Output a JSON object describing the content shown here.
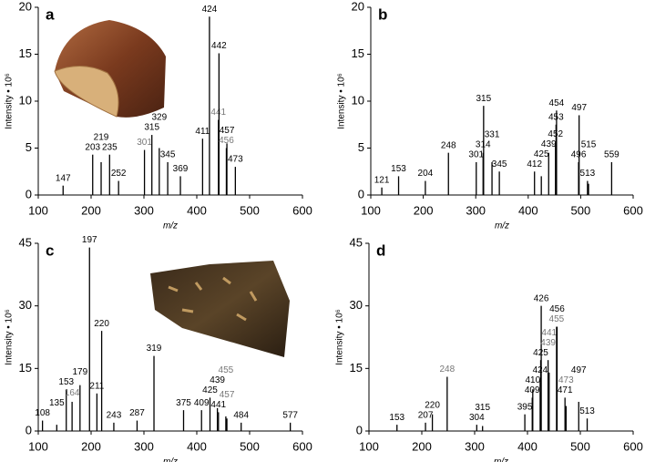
{
  "chart_data": [
    {
      "type": "bar",
      "panel": "a",
      "xlabel": "m/z",
      "ylabel": "Intensity • 10⁶",
      "xlim": [
        100,
        600
      ],
      "ylim": [
        0,
        20
      ],
      "xticks": [
        100,
        200,
        300,
        400,
        500,
        600
      ],
      "yticks": [
        0,
        5,
        10,
        15,
        20
      ],
      "color": "#000000",
      "x": [
        147,
        203,
        219,
        235,
        252,
        301,
        315,
        329,
        345,
        369,
        411,
        424,
        441,
        442,
        456,
        457,
        473
      ],
      "values": [
        1,
        4.3,
        3.5,
        4.3,
        1.5,
        4.8,
        6.4,
        5,
        3.5,
        2,
        6,
        19,
        8,
        15.1,
        5,
        5.5,
        3
      ],
      "label_colors": [
        "#000",
        "#000",
        "#000",
        "#000",
        "#000",
        "#777",
        "#000",
        "#000",
        "#000",
        "#000",
        "#000",
        "#000",
        "#777",
        "#000",
        "#777",
        "#000",
        "#000"
      ]
    },
    {
      "type": "bar",
      "panel": "b",
      "xlabel": "m/z",
      "ylabel": "Intensity • 10⁶",
      "xlim": [
        100,
        600
      ],
      "ylim": [
        0,
        20
      ],
      "xticks": [
        100,
        200,
        300,
        400,
        500,
        600
      ],
      "yticks": [
        0,
        5,
        10,
        15,
        20
      ],
      "color": "#000000",
      "x": [
        121,
        153,
        204,
        248,
        301,
        314,
        315,
        331,
        345,
        412,
        425,
        439,
        452,
        453,
        454,
        496,
        497,
        513,
        515,
        559
      ],
      "values": [
        0.8,
        2,
        1.5,
        4.5,
        3.5,
        4.5,
        9.5,
        3.5,
        2.5,
        2.5,
        2,
        4.5,
        5.5,
        7.5,
        9,
        3.5,
        8.5,
        1.5,
        1.2,
        3.5
      ],
      "label_colors": [
        "#000",
        "#000",
        "#000",
        "#000",
        "#000",
        "#000",
        "#000",
        "#000",
        "#000",
        "#000",
        "#000",
        "#000",
        "#000",
        "#000",
        "#000",
        "#000",
        "#000",
        "#000",
        "#000",
        "#000"
      ]
    },
    {
      "type": "bar",
      "panel": "c",
      "xlabel": "m/z",
      "ylabel": "Intensity • 10⁶",
      "xlim": [
        100,
        600
      ],
      "ylim": [
        0,
        45
      ],
      "xticks": [
        100,
        200,
        300,
        400,
        500,
        600
      ],
      "yticks": [
        0,
        15,
        30,
        45
      ],
      "color": "#000000",
      "x": [
        108,
        135,
        153,
        164,
        179,
        197,
        211,
        220,
        243,
        287,
        319,
        375,
        409,
        425,
        439,
        441,
        455,
        457,
        484,
        577
      ],
      "values": [
        2.5,
        1.5,
        10,
        7,
        11,
        44,
        9,
        24,
        2,
        2.5,
        18,
        5,
        5,
        8,
        5.5,
        4.5,
        3.5,
        3,
        2,
        2
      ],
      "label_colors": [
        "#000",
        "#000",
        "#000",
        "#777",
        "#000",
        "#000",
        "#000",
        "#000",
        "#000",
        "#000",
        "#000",
        "#000",
        "#000",
        "#000",
        "#000",
        "#000",
        "#777",
        "#777",
        "#000",
        "#000"
      ]
    },
    {
      "type": "bar",
      "panel": "d",
      "xlabel": "m/z",
      "ylabel": "Intensity • 10⁶",
      "xlim": [
        100,
        600
      ],
      "ylim": [
        0,
        45
      ],
      "xticks": [
        100,
        200,
        300,
        400,
        500,
        600
      ],
      "yticks": [
        0,
        15,
        30,
        45
      ],
      "color": "#000000",
      "x": [
        153,
        207,
        220,
        248,
        304,
        315,
        395,
        409,
        410,
        424,
        425,
        426,
        439,
        441,
        455,
        456,
        471,
        473,
        497,
        513
      ],
      "values": [
        1.5,
        2,
        4,
        13,
        1.5,
        1.2,
        4,
        8,
        10,
        12.5,
        17,
        30,
        17,
        14,
        25,
        25,
        8,
        6,
        7,
        3
      ],
      "label_colors": [
        "#000",
        "#000",
        "#000",
        "#777",
        "#000",
        "#000",
        "#000",
        "#000",
        "#000",
        "#000",
        "#000",
        "#000",
        "#777",
        "#777",
        "#777",
        "#000",
        "#000",
        "#777",
        "#000",
        "#000"
      ]
    }
  ]
}
